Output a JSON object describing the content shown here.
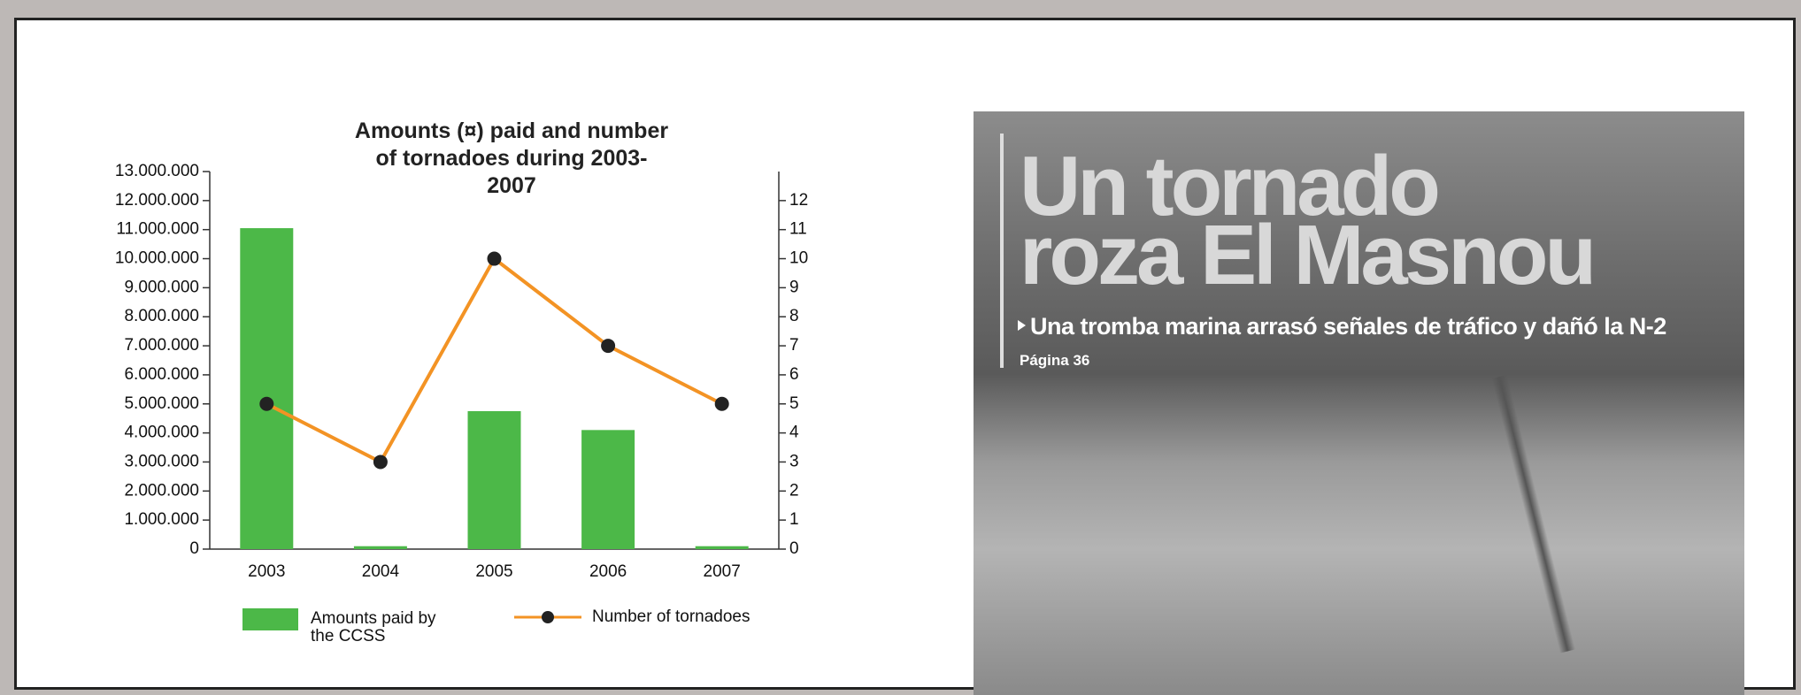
{
  "chart_data": {
    "type": "combo",
    "title": "Amounts (¤) paid and number of tornadoes during 2003-2007",
    "categories": [
      "2003",
      "2004",
      "2005",
      "2006",
      "2007"
    ],
    "series": [
      {
        "name": "Amounts paid by the CCSS",
        "type": "bar",
        "color": "#4cb848",
        "values": [
          11050000,
          100000,
          4750000,
          4100000,
          100000
        ]
      },
      {
        "name": "Number of tornadoes",
        "type": "line",
        "axis": "y2",
        "color": "#f39324",
        "values": [
          5,
          3,
          10,
          7,
          5
        ]
      }
    ],
    "ylim": [
      0,
      13000000
    ],
    "yticks": [
      {
        "value": 0,
        "label": "0"
      },
      {
        "value": 1000000,
        "label": "1.000.000"
      },
      {
        "value": 2000000,
        "label": "2.000.000"
      },
      {
        "value": 3000000,
        "label": "3.000.000"
      },
      {
        "value": 4000000,
        "label": "4.000.000"
      },
      {
        "value": 5000000,
        "label": "5.000.000"
      },
      {
        "value": 6000000,
        "label": "6.000.000"
      },
      {
        "value": 7000000,
        "label": "7.000.000"
      },
      {
        "value": 8000000,
        "label": "8.000.000"
      },
      {
        "value": 9000000,
        "label": "9.000.000"
      },
      {
        "value": 10000000,
        "label": "10.000.000"
      },
      {
        "value": 11000000,
        "label": "11.000.000"
      },
      {
        "value": 12000000,
        "label": "12.000.000"
      },
      {
        "value": 13000000,
        "label": "13.000.000"
      }
    ],
    "y2lim": [
      0,
      13
    ],
    "y2ticks": [
      0,
      1,
      2,
      3,
      4,
      5,
      6,
      7,
      8,
      9,
      10,
      11,
      12
    ],
    "grid": false
  },
  "photo": {
    "headline_line1": "Un tornado",
    "headline_line2": "roza El Masnou",
    "subtitle": "Una tromba marina arrasó señales de tráfico y dañó la N-2",
    "page": "Página 36"
  }
}
